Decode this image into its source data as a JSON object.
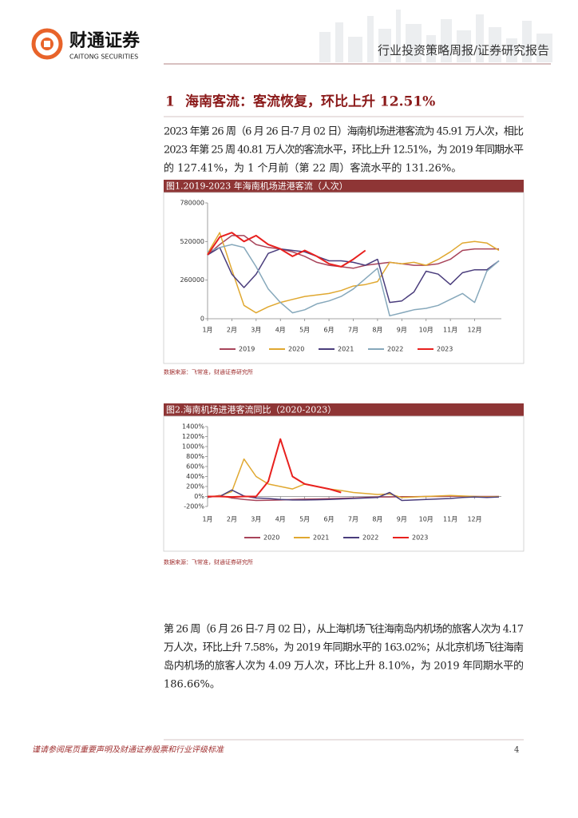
{
  "header": {
    "company_cn": "财通证券",
    "company_en": "CAITONG SECURITIES",
    "report_type": "行业投资策略周报/证券研究报告"
  },
  "section": {
    "number": "1",
    "title": "海南客流：客流恢复，环比上升 12.51%"
  },
  "paragraphs": [
    [
      "2023 年第 26 周（6 月 26 日-7 月 02 日）海南机场进港客流为 45.91 万人次，相比",
      "2023 年第 25 周 40.81 万人次的客流水平，环比上升 12.51%，为 2019 年同期水平",
      "的 127.41%，为 1 个月前（第 22 周）客流水平的 131.26%。"
    ],
    [
      "第 26 周（6 月 26 日-7 月 02 日），从上海机场飞往海南岛内机场的旅客人次为 4.17",
      "万人次，环比上升 7.58%，为 2019 年同期水平的 163.02%；从北京机场飞往海南",
      "岛内机场的旅客人次为 4.09 万人次，环比上升 8.10%，为 2019 年同期水平的",
      "186.66%。"
    ]
  ],
  "chart_data": [
    {
      "type": "line",
      "title": "图1.2019-2023 年海南机场进港客流（人次）",
      "source": "数据来源：飞常准，财通证券研究所",
      "x": [
        1,
        1.5,
        2,
        2.5,
        3,
        3.5,
        4,
        4.5,
        5,
        5.5,
        6,
        6.5,
        7,
        7.5,
        8,
        8.5,
        9,
        9.5,
        10,
        10.5,
        11,
        11.5,
        12,
        12.5,
        13
      ],
      "xlim": [
        1,
        13.1
      ],
      "xticks": [
        {
          "value": 1,
          "label": "1月"
        },
        {
          "value": 2,
          "label": "2月"
        },
        {
          "value": 3,
          "label": "3月"
        },
        {
          "value": 4,
          "label": "4月"
        },
        {
          "value": 5,
          "label": "5月"
        },
        {
          "value": 6,
          "label": "6月"
        },
        {
          "value": 7,
          "label": "7月"
        },
        {
          "value": 8,
          "label": "8月"
        },
        {
          "value": 9,
          "label": "9月"
        },
        {
          "value": 10,
          "label": "10月"
        },
        {
          "value": 11,
          "label": "11月"
        },
        {
          "value": 12,
          "label": "12月"
        }
      ],
      "ylim": [
        0,
        780000
      ],
      "yticks": [
        0,
        260000,
        520000,
        780000
      ],
      "series": [
        {
          "name": "2019",
          "color": "#a8445a",
          "values": [
            430000,
            500000,
            560000,
            560000,
            500000,
            480000,
            470000,
            450000,
            420000,
            380000,
            360000,
            350000,
            340000,
            360000,
            370000,
            380000,
            370000,
            360000,
            360000,
            370000,
            400000,
            460000,
            470000,
            470000,
            470000
          ]
        },
        {
          "name": "2020",
          "color": "#e0a830",
          "values": [
            440000,
            580000,
            330000,
            90000,
            40000,
            80000,
            110000,
            130000,
            150000,
            160000,
            170000,
            190000,
            220000,
            230000,
            250000,
            380000,
            370000,
            380000,
            360000,
            400000,
            450000,
            510000,
            520000,
            510000,
            460000
          ]
        },
        {
          "name": "2021",
          "color": "#4a3d7c",
          "values": [
            430000,
            480000,
            300000,
            210000,
            300000,
            440000,
            470000,
            460000,
            450000,
            420000,
            390000,
            390000,
            380000,
            360000,
            400000,
            110000,
            120000,
            180000,
            320000,
            300000,
            230000,
            310000,
            330000,
            330000,
            390000
          ]
        },
        {
          "name": "2022",
          "color": "#86a8bb",
          "values": [
            450000,
            480000,
            500000,
            480000,
            350000,
            200000,
            110000,
            40000,
            60000,
            100000,
            120000,
            150000,
            200000,
            270000,
            340000,
            20000,
            40000,
            60000,
            70000,
            90000,
            130000,
            170000,
            110000,
            320000,
            390000
          ]
        },
        {
          "name": "2023",
          "color": "#e8201e",
          "values": [
            430000,
            550000,
            580000,
            520000,
            560000,
            500000,
            470000,
            420000,
            460000,
            420000,
            370000,
            350000,
            400000,
            460000,
            null,
            null,
            null,
            null,
            null,
            null,
            null,
            null,
            null,
            null,
            null
          ]
        }
      ]
    },
    {
      "type": "line",
      "title": "图2.海南机场进港客流同比（2020-2023）",
      "source": "数据来源：飞常准，财通证券研究所",
      "x": [
        1,
        1.5,
        2,
        2.5,
        3,
        3.5,
        4,
        4.5,
        5,
        5.5,
        6,
        6.5,
        7,
        7.5,
        8,
        8.5,
        9,
        9.5,
        10,
        10.5,
        11,
        11.5,
        12,
        12.5,
        13
      ],
      "xlim": [
        1,
        13.1
      ],
      "xticks": [
        {
          "value": 1,
          "label": "1月"
        },
        {
          "value": 2,
          "label": "2月"
        },
        {
          "value": 3,
          "label": "3月"
        },
        {
          "value": 4,
          "label": "4月"
        },
        {
          "value": 5,
          "label": "5月"
        },
        {
          "value": 6,
          "label": "6月"
        },
        {
          "value": 7,
          "label": "7月"
        },
        {
          "value": 8,
          "label": "8月"
        },
        {
          "value": 9,
          "label": "9月"
        },
        {
          "value": 10,
          "label": "10月"
        },
        {
          "value": 11,
          "label": "11月"
        },
        {
          "value": 12,
          "label": "12月"
        }
      ],
      "ylim": [
        -200,
        1400
      ],
      "yticks": [
        {
          "value": -200,
          "label": "-200%"
        },
        {
          "value": 0,
          "label": "0%"
        },
        {
          "value": 200,
          "label": "200%"
        },
        {
          "value": 400,
          "label": "400%"
        },
        {
          "value": 600,
          "label": "600%"
        },
        {
          "value": 800,
          "label": "800%"
        },
        {
          "value": 1000,
          "label": "1000%"
        },
        {
          "value": 1200,
          "label": "1200%"
        },
        {
          "value": 1400,
          "label": "1400%"
        }
      ],
      "series": [
        {
          "name": "2020",
          "color": "#a8445a",
          "values": [
            -20,
            20,
            -30,
            -60,
            -80,
            -75,
            -70,
            -60,
            -55,
            -50,
            -45,
            -35,
            -30,
            -20,
            -10,
            -10,
            -5,
            -5,
            0,
            0,
            5,
            5,
            0,
            0,
            0
          ]
        },
        {
          "name": "2021",
          "color": "#e0a830",
          "values": [
            0,
            10,
            100,
            750,
            400,
            250,
            200,
            150,
            250,
            200,
            150,
            120,
            80,
            60,
            40,
            50,
            -20,
            -10,
            0,
            10,
            20,
            10,
            0,
            -10,
            0
          ]
        },
        {
          "name": "2022",
          "color": "#4a3d7c",
          "values": [
            0,
            0,
            130,
            10,
            -30,
            -40,
            -60,
            -70,
            -70,
            -65,
            -60,
            -50,
            -40,
            -30,
            -20,
            80,
            -80,
            -70,
            -60,
            -50,
            -40,
            -20,
            -10,
            -20,
            -10
          ]
        },
        {
          "name": "2023",
          "color": "#e8201e",
          "values": [
            0,
            0,
            -10,
            0,
            0,
            300,
            1150,
            400,
            250,
            200,
            150,
            80,
            null,
            null,
            null,
            null,
            null,
            null,
            null,
            null,
            null,
            null,
            null,
            null,
            null
          ]
        }
      ]
    }
  ],
  "footer": {
    "disclaimer": "谨请参阅尾页重要声明及财通证券股票和行业评级标准",
    "page": "4"
  }
}
